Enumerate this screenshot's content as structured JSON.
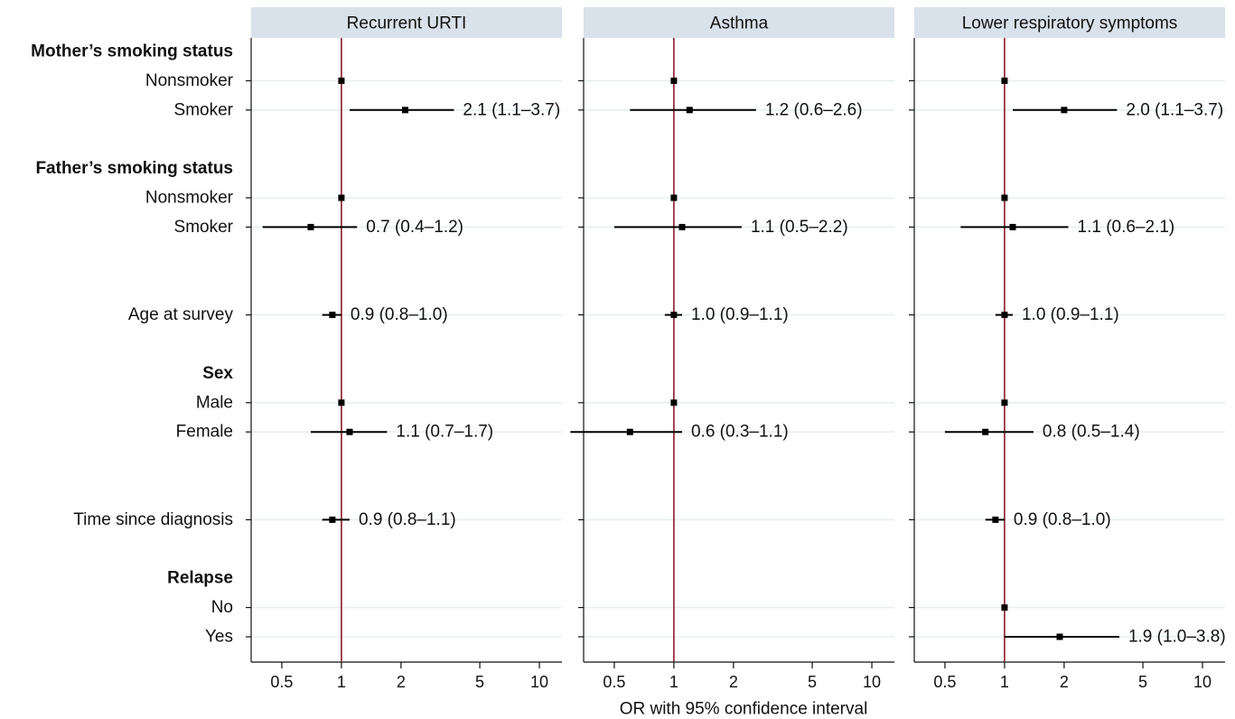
{
  "chart_data": {
    "type": "forest",
    "xlabel": "OR with 95% confidence interval",
    "x_scale": "log",
    "xlim": [
      0.35,
      13
    ],
    "x_ticks": [
      0.5,
      1,
      2,
      5,
      10
    ],
    "x_tick_labels": [
      "0.5",
      "1",
      "2",
      "5",
      "10"
    ],
    "reference_line": 1,
    "reference_color": "#8b1a2b",
    "grid": true,
    "rows": [
      {
        "label": "Mother’s smoking status",
        "bold": true
      },
      {
        "label": "Nonsmoker",
        "bold": false
      },
      {
        "label": "Smoker",
        "bold": false
      },
      {
        "label": "",
        "bold": false
      },
      {
        "label": "Father’s smoking status",
        "bold": true
      },
      {
        "label": "Nonsmoker",
        "bold": false
      },
      {
        "label": "Smoker",
        "bold": false
      },
      {
        "label": "",
        "bold": false
      },
      {
        "label": "",
        "bold": false
      },
      {
        "label": "Age at survey",
        "bold": false
      },
      {
        "label": "",
        "bold": false
      },
      {
        "label": "Sex",
        "bold": true
      },
      {
        "label": "Male",
        "bold": false
      },
      {
        "label": "Female",
        "bold": false
      },
      {
        "label": "",
        "bold": false
      },
      {
        "label": "",
        "bold": false
      },
      {
        "label": "Time since diagnosis",
        "bold": false
      },
      {
        "label": "",
        "bold": false
      },
      {
        "label": "Relapse",
        "bold": true
      },
      {
        "label": "No",
        "bold": false
      },
      {
        "label": "Yes",
        "bold": false
      }
    ],
    "panels": [
      {
        "title": "Recurrent URTI",
        "estimates": [
          {
            "row": 1,
            "or": 1.0
          },
          {
            "row": 2,
            "or": 2.1,
            "lo": 1.1,
            "hi": 3.7,
            "label": "2.1 (1.1–3.7)"
          },
          {
            "row": 5,
            "or": 1.0
          },
          {
            "row": 6,
            "or": 0.7,
            "lo": 0.4,
            "hi": 1.2,
            "label": "0.7 (0.4–1.2)"
          },
          {
            "row": 9,
            "or": 0.9,
            "lo": 0.8,
            "hi": 1.0,
            "label": "0.9 (0.8–1.0)"
          },
          {
            "row": 12,
            "or": 1.0
          },
          {
            "row": 13,
            "or": 1.1,
            "lo": 0.7,
            "hi": 1.7,
            "label": "1.1 (0.7–1.7)"
          },
          {
            "row": 16,
            "or": 0.9,
            "lo": 0.8,
            "hi": 1.1,
            "label": "0.9 (0.8–1.1)"
          }
        ]
      },
      {
        "title": "Asthma",
        "estimates": [
          {
            "row": 1,
            "or": 1.0
          },
          {
            "row": 2,
            "or": 1.2,
            "lo": 0.6,
            "hi": 2.6,
            "label": "1.2 (0.6–2.6)"
          },
          {
            "row": 5,
            "or": 1.0
          },
          {
            "row": 6,
            "or": 1.1,
            "lo": 0.5,
            "hi": 2.2,
            "label": "1.1 (0.5–2.2)"
          },
          {
            "row": 9,
            "or": 1.0,
            "lo": 0.9,
            "hi": 1.1,
            "label": "1.0 (0.9–1.1)"
          },
          {
            "row": 12,
            "or": 1.0
          },
          {
            "row": 13,
            "or": 0.6,
            "lo": 0.3,
            "hi": 1.1,
            "label": "0.6 (0.3–1.1)"
          }
        ]
      },
      {
        "title": "Lower respiratory symptoms",
        "estimates": [
          {
            "row": 1,
            "or": 1.0
          },
          {
            "row": 2,
            "or": 2.0,
            "lo": 1.1,
            "hi": 3.7,
            "label": "2.0 (1.1–3.7)"
          },
          {
            "row": 5,
            "or": 1.0
          },
          {
            "row": 6,
            "or": 1.1,
            "lo": 0.6,
            "hi": 2.1,
            "label": "1.1 (0.6–2.1)"
          },
          {
            "row": 9,
            "or": 1.0,
            "lo": 0.9,
            "hi": 1.1,
            "label": "1.0 (0.9–1.1)"
          },
          {
            "row": 12,
            "or": 1.0
          },
          {
            "row": 13,
            "or": 0.8,
            "lo": 0.5,
            "hi": 1.4,
            "label": "0.8 (0.5–1.4)"
          },
          {
            "row": 16,
            "or": 0.9,
            "lo": 0.8,
            "hi": 1.0,
            "label": "0.9 (0.8–1.0)"
          },
          {
            "row": 19,
            "or": 1.0
          },
          {
            "row": 20,
            "or": 1.9,
            "lo": 1.0,
            "hi": 3.8,
            "label": "1.9 (1.0–3.8)"
          }
        ]
      }
    ]
  }
}
